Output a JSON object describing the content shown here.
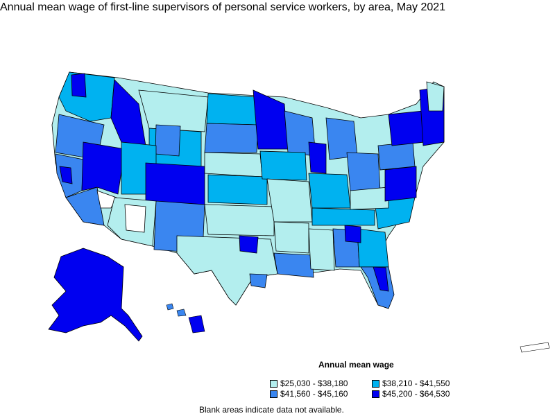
{
  "title": "Annual mean wage of first-line supervisors of personal service workers, by area, May 2021",
  "legend": {
    "title": "Annual mean wage",
    "items": [
      {
        "label": "$25,030 - $38,180",
        "color": "#b3eeee"
      },
      {
        "label": "$38,210 - $41,550",
        "color": "#00b2f0"
      },
      {
        "label": "$41,560 - $45,160",
        "color": "#3a86f0"
      },
      {
        "label": "$45,200 - $64,530",
        "color": "#0000f0"
      }
    ]
  },
  "note": "Blank areas indicate data not available.",
  "colors": {
    "c1": "#b3eeee",
    "c2": "#00b2f0",
    "c3": "#3a86f0",
    "c4": "#0000f0",
    "blank": "#ffffff",
    "border": "#000000"
  }
}
